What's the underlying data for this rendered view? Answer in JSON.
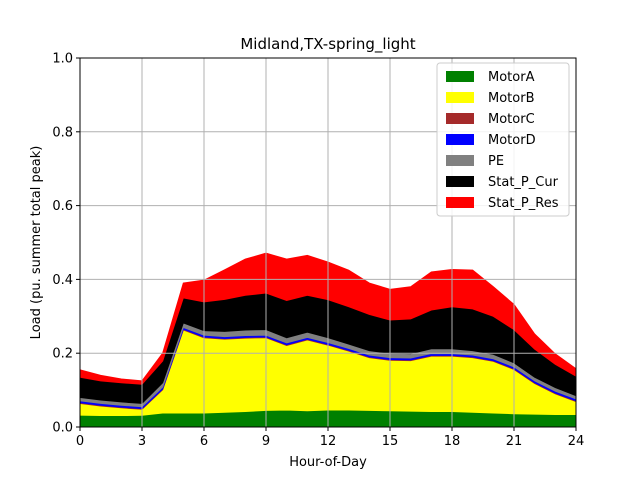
{
  "chart_data": {
    "type": "area",
    "stacked": true,
    "title": "Midland,TX-spring_light",
    "xlabel": "Hour-of-Day",
    "ylabel": "Load (pu. summer total peak)",
    "xlim": [
      0,
      24
    ],
    "ylim": [
      0,
      1.0
    ],
    "xticks": [
      0,
      3,
      6,
      9,
      12,
      15,
      18,
      21,
      24
    ],
    "yticks": [
      0.0,
      0.2,
      0.4,
      0.6,
      0.8,
      1.0
    ],
    "xtick_labels": [
      "0",
      "3",
      "6",
      "9",
      "12",
      "15",
      "18",
      "21",
      "24"
    ],
    "ytick_labels": [
      "0.0",
      "0.2",
      "0.4",
      "0.6",
      "0.8",
      "1.0"
    ],
    "grid": true,
    "legend_position": "top-right",
    "x": [
      0,
      1,
      2,
      3,
      4,
      5,
      6,
      7,
      8,
      9,
      10,
      11,
      12,
      13,
      14,
      15,
      16,
      17,
      18,
      19,
      20,
      21,
      22,
      23,
      24
    ],
    "series": [
      {
        "name": "MotorA",
        "color": "#008000",
        "values": [
          0.032,
          0.031,
          0.031,
          0.032,
          0.038,
          0.038,
          0.038,
          0.04,
          0.042,
          0.045,
          0.046,
          0.044,
          0.046,
          0.046,
          0.045,
          0.044,
          0.043,
          0.042,
          0.042,
          0.04,
          0.038,
          0.036,
          0.035,
          0.034,
          0.034
        ]
      },
      {
        "name": "MotorB",
        "color": "#ffff00",
        "values": [
          0.032,
          0.026,
          0.021,
          0.016,
          0.063,
          0.225,
          0.204,
          0.198,
          0.199,
          0.197,
          0.175,
          0.192,
          0.176,
          0.16,
          0.143,
          0.137,
          0.137,
          0.15,
          0.15,
          0.148,
          0.14,
          0.12,
          0.083,
          0.056,
          0.035
        ]
      },
      {
        "name": "MotorC",
        "color": "#a52a2a",
        "values": [
          0.002,
          0.002,
          0.002,
          0.002,
          0.002,
          0.002,
          0.002,
          0.002,
          0.002,
          0.002,
          0.002,
          0.002,
          0.002,
          0.002,
          0.002,
          0.002,
          0.002,
          0.002,
          0.002,
          0.002,
          0.002,
          0.002,
          0.002,
          0.002,
          0.002
        ]
      },
      {
        "name": "MotorD",
        "color": "#0000ff",
        "values": [
          0.005,
          0.005,
          0.005,
          0.005,
          0.005,
          0.005,
          0.005,
          0.005,
          0.005,
          0.005,
          0.005,
          0.005,
          0.005,
          0.005,
          0.005,
          0.005,
          0.005,
          0.005,
          0.005,
          0.005,
          0.005,
          0.005,
          0.005,
          0.005,
          0.005
        ]
      },
      {
        "name": "PE",
        "color": "#808080",
        "values": [
          0.009,
          0.009,
          0.009,
          0.009,
          0.012,
          0.012,
          0.012,
          0.014,
          0.015,
          0.015,
          0.014,
          0.014,
          0.013,
          0.012,
          0.012,
          0.012,
          0.012,
          0.013,
          0.013,
          0.012,
          0.012,
          0.011,
          0.01,
          0.01,
          0.009
        ]
      },
      {
        "name": "Stat_P_Cur",
        "color": "#000000",
        "values": [
          0.055,
          0.052,
          0.052,
          0.052,
          0.059,
          0.068,
          0.078,
          0.087,
          0.094,
          0.099,
          0.101,
          0.1,
          0.103,
          0.101,
          0.098,
          0.09,
          0.094,
          0.105,
          0.114,
          0.113,
          0.103,
          0.09,
          0.076,
          0.063,
          0.053
        ]
      },
      {
        "name": "Stat_P_Res",
        "color": "#ff0000",
        "values": [
          0.02,
          0.015,
          0.01,
          0.009,
          0.021,
          0.04,
          0.059,
          0.08,
          0.098,
          0.108,
          0.112,
          0.108,
          0.102,
          0.099,
          0.085,
          0.083,
          0.087,
          0.103,
          0.101,
          0.105,
          0.08,
          0.068,
          0.041,
          0.028,
          0.02
        ]
      }
    ]
  }
}
